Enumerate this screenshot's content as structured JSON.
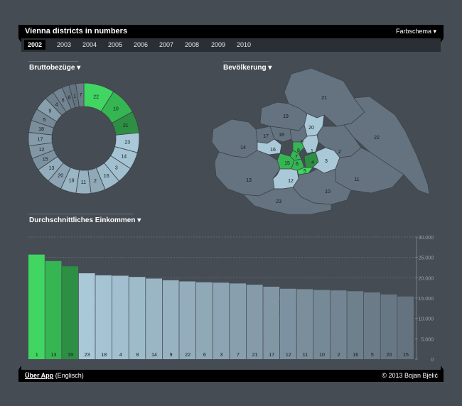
{
  "header": {
    "title": "Vienna districts in numbers",
    "scheme_label": "Farbschema ▾"
  },
  "years": [
    "2002",
    "2003",
    "2004",
    "2005",
    "2006",
    "2007",
    "2008",
    "2009",
    "2010"
  ],
  "active_year": "2002",
  "sections": {
    "donut_title": "Bruttobezüge ▾",
    "map_title": "Bevölkerung ▾",
    "bar_title": "Durchschnittliches Einkommen ▾"
  },
  "footer": {
    "about_link": "Über App",
    "about_note": "(Englisch)",
    "copyright": "© 2013 Bojan Bjelić"
  },
  "colors": {
    "bg": "#464c54",
    "green1": "#40d661",
    "green2": "#36b653",
    "green3": "#2d8f43",
    "lightblue": "#a9c8d8",
    "slate": "#64737f"
  },
  "map_labels": [
    "21",
    "22",
    "19",
    "20",
    "18",
    "17",
    "9",
    "16",
    "2",
    "1",
    "7",
    "8",
    "14",
    "15",
    "6",
    "3",
    "11",
    "13",
    "12",
    "5",
    "4",
    "10",
    "23"
  ],
  "chart_data": [
    {
      "type": "pie",
      "title": "Bruttobezüge",
      "categories": [
        "22",
        "10",
        "21",
        "23",
        "14",
        "3",
        "16",
        "2",
        "11",
        "19",
        "20",
        "13",
        "15",
        "12",
        "17",
        "18",
        "5",
        "9",
        "4",
        "6",
        "8",
        "1",
        "7"
      ],
      "values": [
        8.1,
        7.2,
        5.7,
        5.2,
        4.5,
        4.4,
        4.2,
        3.8,
        3.9,
        4.1,
        3.8,
        3.9,
        3.3,
        3.4,
        3.5,
        3.2,
        3.2,
        3.6,
        2.5,
        2.6,
        1.9,
        1.8,
        2.1
      ]
    },
    {
      "type": "bar",
      "title": "Durchschnittliches Einkommen",
      "categories": [
        "1",
        "13",
        "19",
        "23",
        "18",
        "4",
        "8",
        "14",
        "9",
        "22",
        "6",
        "3",
        "7",
        "21",
        "17",
        "12",
        "11",
        "10",
        "2",
        "16",
        "5",
        "20",
        "15"
      ],
      "values": [
        25700,
        24100,
        22800,
        21100,
        20600,
        20500,
        20200,
        19800,
        19400,
        19100,
        18900,
        18800,
        18600,
        18300,
        17800,
        17300,
        17200,
        17000,
        16900,
        16700,
        16400,
        15900,
        15400
      ],
      "ylim": [
        0,
        30000
      ],
      "yticks": [
        "0",
        "5.000",
        "10.000",
        "15.000",
        "20.000",
        "25.000",
        "30.000"
      ],
      "grid": true
    }
  ]
}
